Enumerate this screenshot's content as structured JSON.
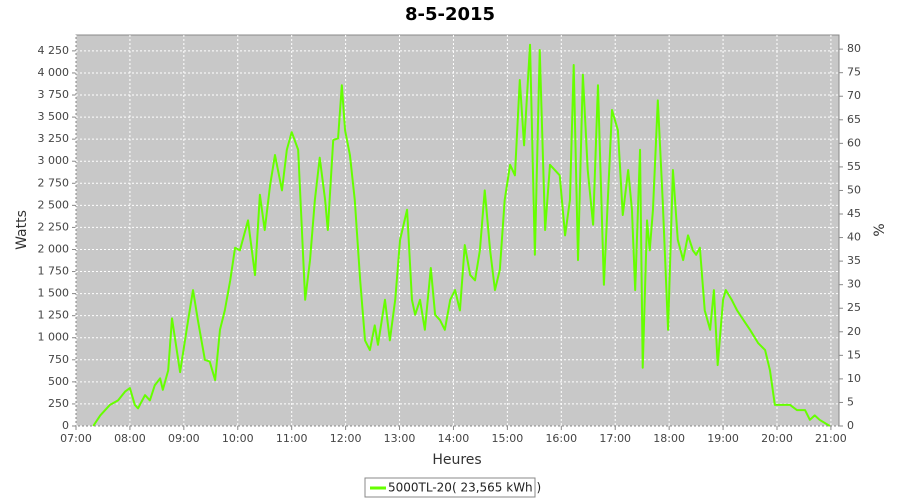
{
  "chart_data": {
    "type": "line",
    "title": "8-5-2015",
    "x_label": "Heures",
    "y_label": "Watts",
    "y2_label": "%",
    "x": [
      7.32,
      7.45,
      7.63,
      7.78,
      7.91,
      8.0,
      8.09,
      8.15,
      8.28,
      8.37,
      8.46,
      8.56,
      8.61,
      8.71,
      8.78,
      8.93,
      9.08,
      9.17,
      9.26,
      9.39,
      9.48,
      9.58,
      9.67,
      9.76,
      9.86,
      9.95,
      10.04,
      10.19,
      10.32,
      10.41,
      10.5,
      10.6,
      10.69,
      10.82,
      10.91,
      11.0,
      11.12,
      11.25,
      11.34,
      11.43,
      11.52,
      11.62,
      11.67,
      11.77,
      11.86,
      11.93,
      11.99,
      12.08,
      12.17,
      12.27,
      12.36,
      12.45,
      12.54,
      12.6,
      12.73,
      12.82,
      12.92,
      13.01,
      13.14,
      13.23,
      13.29,
      13.38,
      13.47,
      13.58,
      13.66,
      13.75,
      13.84,
      13.94,
      14.03,
      14.12,
      14.21,
      14.31,
      14.4,
      14.49,
      14.58,
      14.68,
      14.77,
      14.86,
      14.95,
      15.05,
      15.14,
      15.23,
      15.31,
      15.42,
      15.51,
      15.6,
      15.7,
      15.79,
      15.88,
      15.97,
      16.07,
      16.16,
      16.23,
      16.31,
      16.4,
      16.49,
      16.59,
      16.68,
      16.79,
      16.94,
      17.05,
      17.14,
      17.24,
      17.31,
      17.37,
      17.46,
      17.51,
      17.59,
      17.64,
      17.7,
      17.79,
      17.88,
      17.98,
      18.07,
      18.16,
      18.26,
      18.35,
      18.44,
      18.5,
      18.57,
      18.66,
      18.76,
      18.83,
      18.9,
      19.0,
      19.05,
      19.16,
      19.26,
      19.4,
      19.5,
      19.65,
      19.78,
      19.87,
      19.96,
      20.24,
      20.37,
      20.52,
      20.61,
      20.7,
      20.79,
      20.98
    ],
    "series": [
      {
        "name": "5000TL-20( 23,565 kWh )",
        "color": "#66ff00",
        "values": [
          0,
          120,
          240,
          290,
          390,
          430,
          240,
          200,
          350,
          290,
          460,
          540,
          410,
          630,
          1220,
          610,
          1200,
          1540,
          1200,
          750,
          730,
          520,
          1090,
          1310,
          1650,
          2020,
          1990,
          2330,
          1710,
          2620,
          2220,
          2730,
          3070,
          2670,
          3130,
          3330,
          3130,
          1430,
          1880,
          2560,
          3040,
          2560,
          2220,
          3240,
          3260,
          3860,
          3350,
          3070,
          2560,
          1650,
          970,
          860,
          1140,
          920,
          1430,
          970,
          1430,
          2110,
          2450,
          1430,
          1260,
          1430,
          1090,
          1790,
          1260,
          1200,
          1090,
          1430,
          1540,
          1310,
          2050,
          1710,
          1650,
          1990,
          2670,
          1990,
          1540,
          1770,
          2560,
          2960,
          2840,
          3920,
          3180,
          4320,
          1940,
          4260,
          2220,
          2960,
          2900,
          2840,
          2160,
          2560,
          4090,
          1880,
          3980,
          2900,
          2280,
          3860,
          1600,
          3580,
          3350,
          2390,
          2900,
          2450,
          1540,
          3130,
          660,
          2330,
          1990,
          2450,
          3690,
          2560,
          1090,
          2900,
          2110,
          1880,
          2160,
          1990,
          1940,
          2020,
          1310,
          1090,
          1540,
          690,
          1430,
          1540,
          1430,
          1310,
          1180,
          1090,
          940,
          860,
          630,
          240,
          240,
          180,
          180,
          70,
          120,
          70,
          0
        ]
      }
    ],
    "xlim": [
      7,
      21.15
    ],
    "xticks": [
      {
        "value": 7,
        "label": "07:00"
      },
      {
        "value": 8,
        "label": "08:00"
      },
      {
        "value": 9,
        "label": "09:00"
      },
      {
        "value": 10,
        "label": "10:00"
      },
      {
        "value": 11,
        "label": "11:00"
      },
      {
        "value": 12,
        "label": "12:00"
      },
      {
        "value": 13,
        "label": "13:00"
      },
      {
        "value": 14,
        "label": "14:00"
      },
      {
        "value": 15,
        "label": "15:00"
      },
      {
        "value": 16,
        "label": "16:00"
      },
      {
        "value": 17,
        "label": "17:00"
      },
      {
        "value": 18,
        "label": "18:00"
      },
      {
        "value": 19,
        "label": "19:00"
      },
      {
        "value": 20,
        "label": "20:00"
      },
      {
        "value": 21,
        "label": "21:00"
      }
    ],
    "ylim": [
      0,
      4430
    ],
    "yticks": [
      0,
      250,
      500,
      750,
      {
        "value": 1000,
        "label": "1 000"
      },
      {
        "value": 1250,
        "label": "1 250"
      },
      {
        "value": 1500,
        "label": "1 500"
      },
      {
        "value": 1750,
        "label": "1 750"
      },
      {
        "value": 2000,
        "label": "2 000"
      },
      {
        "value": 2250,
        "label": "2 250"
      },
      {
        "value": 2500,
        "label": "2 500"
      },
      {
        "value": 2750,
        "label": "2 750"
      },
      {
        "value": 3000,
        "label": "3 000"
      },
      {
        "value": 3250,
        "label": "3 250"
      },
      {
        "value": 3500,
        "label": "3 500"
      },
      {
        "value": 3750,
        "label": "3 750"
      },
      {
        "value": 4000,
        "label": "4 000"
      },
      {
        "value": 4250,
        "label": "4 250"
      }
    ],
    "y2lim": [
      0,
      83
    ],
    "y2ticks": [
      0,
      5,
      10,
      15,
      20,
      25,
      30,
      35,
      40,
      45,
      50,
      55,
      60,
      65,
      70,
      75,
      80
    ],
    "grid": true
  }
}
